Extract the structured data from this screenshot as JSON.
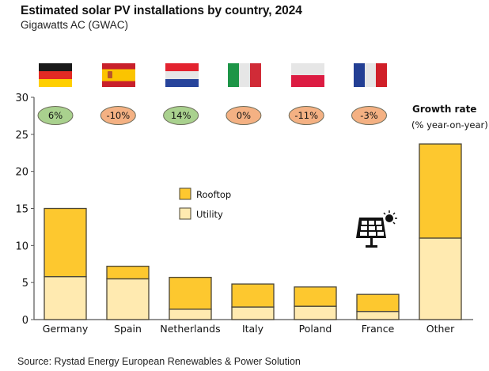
{
  "header": {
    "title": "Estimated solar PV installations by country, 2024",
    "subtitle": "Gigawatts AC (GWAC)"
  },
  "footer": {
    "source": "Source: Rystad Energy European Renewables & Power Solution"
  },
  "colors": {
    "rooftop": "#fdc82f",
    "utility": "#ffeab0",
    "bar_outline": "#4a4536",
    "growth_positive": "#a9d18e",
    "growth_negative": "#f4b183",
    "axis": "#555555"
  },
  "growth_legend": {
    "title": "Growth rate",
    "subtitle": "(% year-on-year)"
  },
  "icons": {
    "solar_panel": "solar-panel-icon",
    "flags": [
      "germany-flag-icon",
      "spain-flag-icon",
      "netherlands-flag-icon",
      "italy-flag-icon",
      "poland-flag-icon",
      "france-flag-icon"
    ]
  },
  "chart_data": {
    "type": "bar",
    "stacked": true,
    "title": "Estimated solar PV installations by country, 2024",
    "subtitle": "Gigawatts AC (GWAC)",
    "xlabel": "",
    "ylabel": "",
    "ylim": [
      0,
      30
    ],
    "yticks": [
      0,
      5,
      10,
      15,
      20,
      25,
      30
    ],
    "grid": false,
    "legend_position": "center",
    "categories": [
      "Germany",
      "Spain",
      "Netherlands",
      "Italy",
      "Poland",
      "France",
      "Other"
    ],
    "series": [
      {
        "name": "Utility",
        "values": [
          5.8,
          5.5,
          1.4,
          1.7,
          1.8,
          1.1,
          11.0
        ]
      },
      {
        "name": "Rooftop",
        "values": [
          9.2,
          1.7,
          4.3,
          3.1,
          2.6,
          2.3,
          12.7
        ]
      }
    ],
    "totals": [
      15.0,
      7.2,
      5.7,
      4.8,
      4.4,
      3.4,
      23.7
    ],
    "legend": [
      "Rooftop",
      "Utility"
    ],
    "growth_rates": [
      {
        "country": "Germany",
        "label": "6%",
        "value": 6
      },
      {
        "country": "Spain",
        "label": "-10%",
        "value": -10
      },
      {
        "country": "Netherlands",
        "label": "14%",
        "value": 14
      },
      {
        "country": "Italy",
        "label": "0%",
        "value": 0
      },
      {
        "country": "Poland",
        "label": "-11%",
        "value": -11
      },
      {
        "country": "France",
        "label": "-3%",
        "value": -3
      }
    ]
  }
}
